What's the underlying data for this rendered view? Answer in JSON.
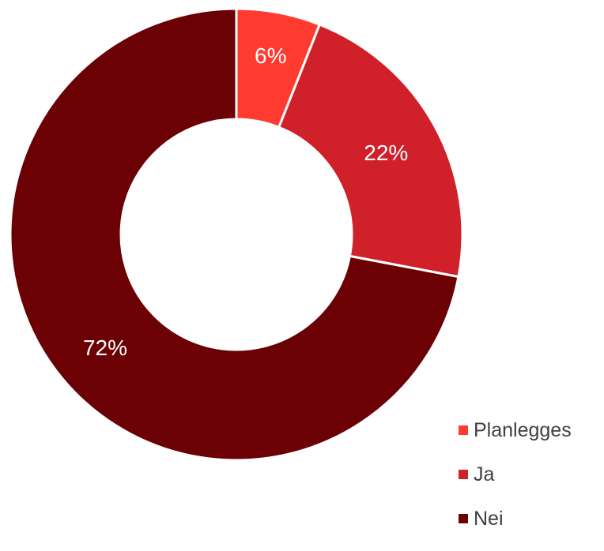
{
  "chart_data": {
    "type": "pie",
    "variant": "donut",
    "categories": [
      "Planlegges",
      "Ja",
      "Nei"
    ],
    "values": [
      6,
      22,
      72
    ],
    "labels": [
      "6%",
      "22%",
      "72%"
    ],
    "colors": [
      "#ff3b30",
      "#d0202a",
      "#6b0005"
    ],
    "title": "",
    "legend": {
      "position": "bottom-right",
      "entries": [
        "Planlegges",
        "Ja",
        "Nei"
      ]
    }
  }
}
